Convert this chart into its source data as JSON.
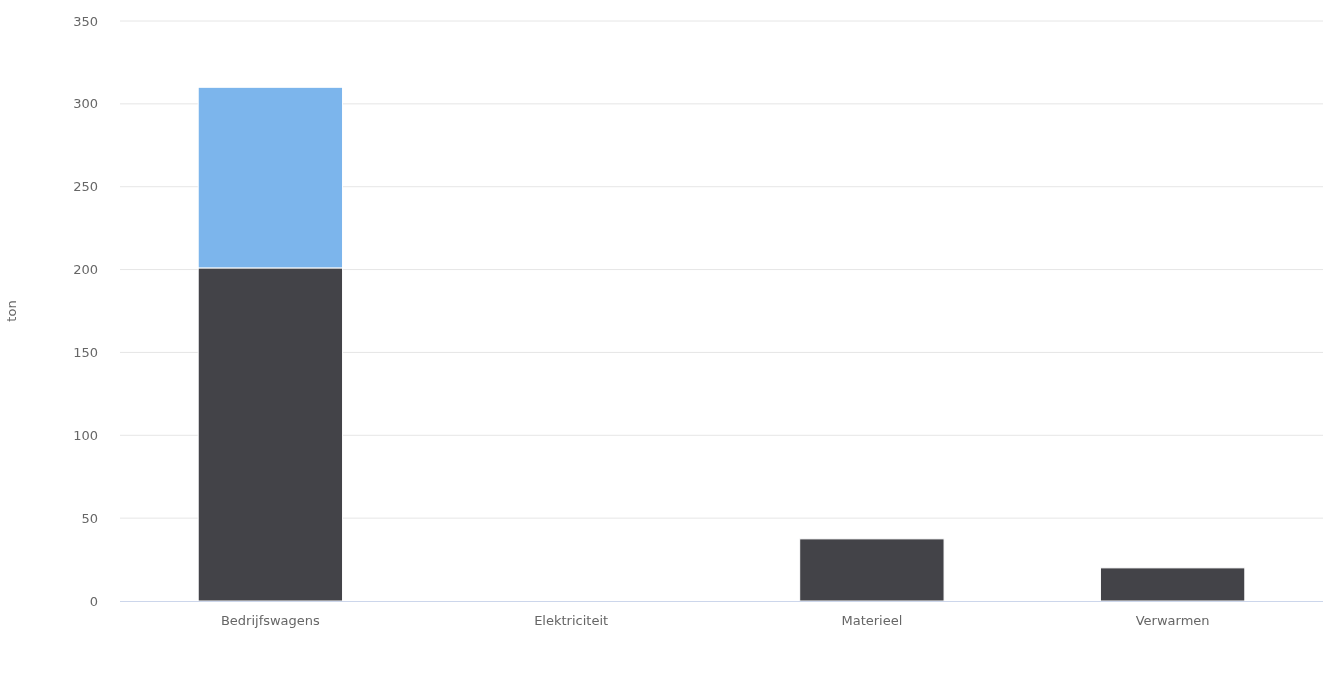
{
  "chart_data": {
    "type": "bar",
    "ylabel": "ton",
    "categories": [
      "Bedrijfswagens",
      "Elektriciteit",
      "Materieel",
      "Verwarmen"
    ],
    "series": [
      {
        "color": "#434348",
        "values": [
          201,
          0,
          37.5,
          20
        ]
      },
      {
        "color": "#7cb5ec",
        "values": [
          109,
          0,
          0,
          0
        ]
      }
    ],
    "stacked": true,
    "ylim": [
      0,
      350
    ],
    "yticks": [
      0,
      50,
      100,
      150,
      200,
      250,
      300,
      350
    ],
    "grid": "y"
  }
}
